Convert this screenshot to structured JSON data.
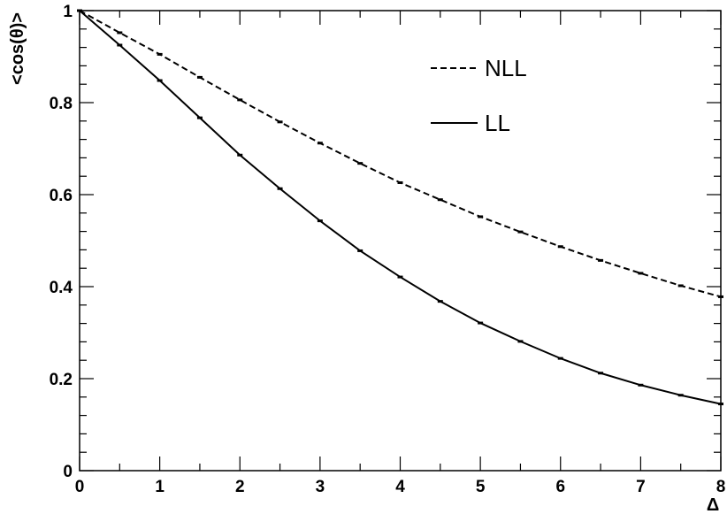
{
  "chart_data": {
    "type": "line",
    "title": "",
    "xlabel": "Δ",
    "ylabel": "<cos(θ)>",
    "xlim": [
      0,
      8
    ],
    "ylim": [
      0,
      1
    ],
    "x_ticks": [
      0,
      1,
      2,
      3,
      4,
      5,
      6,
      7,
      8
    ],
    "y_ticks": [
      0,
      0.2,
      0.4,
      0.6,
      0.8,
      1
    ],
    "y_tick_labels": [
      "0",
      "0.2",
      "0.4",
      "0.6",
      "0.8",
      "1"
    ],
    "grid": false,
    "legend_position": "top-right",
    "x": [
      0,
      0.5,
      1,
      1.5,
      2,
      2.5,
      3,
      3.5,
      4,
      4.5,
      5,
      5.5,
      6,
      6.5,
      7,
      7.5,
      8
    ],
    "series": [
      {
        "name": "NLL",
        "style": "dashed",
        "color": "#000000",
        "values": [
          1.0,
          0.952,
          0.905,
          0.855,
          0.806,
          0.758,
          0.712,
          0.668,
          0.626,
          0.589,
          0.552,
          0.519,
          0.487,
          0.457,
          0.429,
          0.402,
          0.378
        ]
      },
      {
        "name": "LL",
        "style": "solid",
        "color": "#000000",
        "values": [
          1.0,
          0.925,
          0.848,
          0.767,
          0.686,
          0.613,
          0.543,
          0.478,
          0.421,
          0.368,
          0.321,
          0.281,
          0.244,
          0.212,
          0.186,
          0.164,
          0.145
        ]
      }
    ]
  }
}
